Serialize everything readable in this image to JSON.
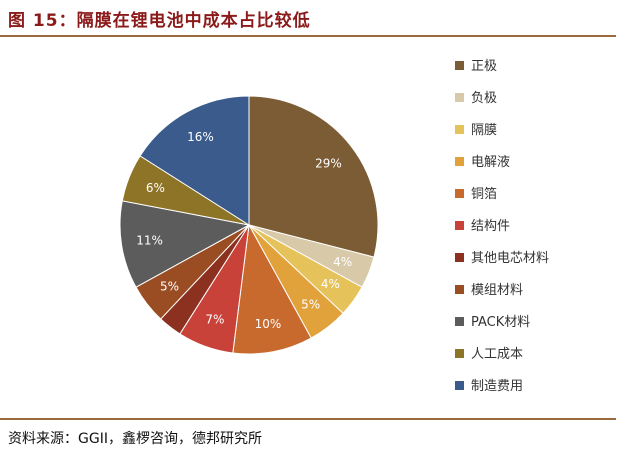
{
  "header": {
    "title": "图 15：隔膜在锂电池中成本占比较低"
  },
  "footer": {
    "source": "资料来源：GGII，鑫椤咨询，德邦研究所"
  },
  "chart_data": {
    "type": "pie",
    "title": "",
    "legend_position": "right",
    "categories": [
      "正极",
      "负极",
      "隔膜",
      "电解液",
      "铜箔",
      "结构件",
      "其他电芯材料",
      "模组材料",
      "PACK材料",
      "人工成本",
      "制造费用"
    ],
    "values": [
      29,
      4,
      4,
      5,
      10,
      7,
      3,
      5,
      11,
      6,
      16
    ],
    "labels": [
      "29%",
      "4%",
      "4%",
      "5%",
      "10%",
      "7%",
      "",
      "5%",
      "11%",
      "6%",
      "16%"
    ],
    "colors": [
      "#7b5c34",
      "#d8c9a8",
      "#e6c35a",
      "#e2a23b",
      "#c8692d",
      "#c9423a",
      "#8c3020",
      "#9a4c22",
      "#5c5c5c",
      "#8e7427",
      "#3a5b8c"
    ],
    "label_colors": [
      "#ffffff",
      "#ffffff",
      "#ffffff",
      "#ffffff",
      "#ffffff",
      "#ffffff",
      "#ffffff",
      "#ffffff",
      "#ffffff",
      "#ffffff",
      "#ffffff"
    ]
  }
}
